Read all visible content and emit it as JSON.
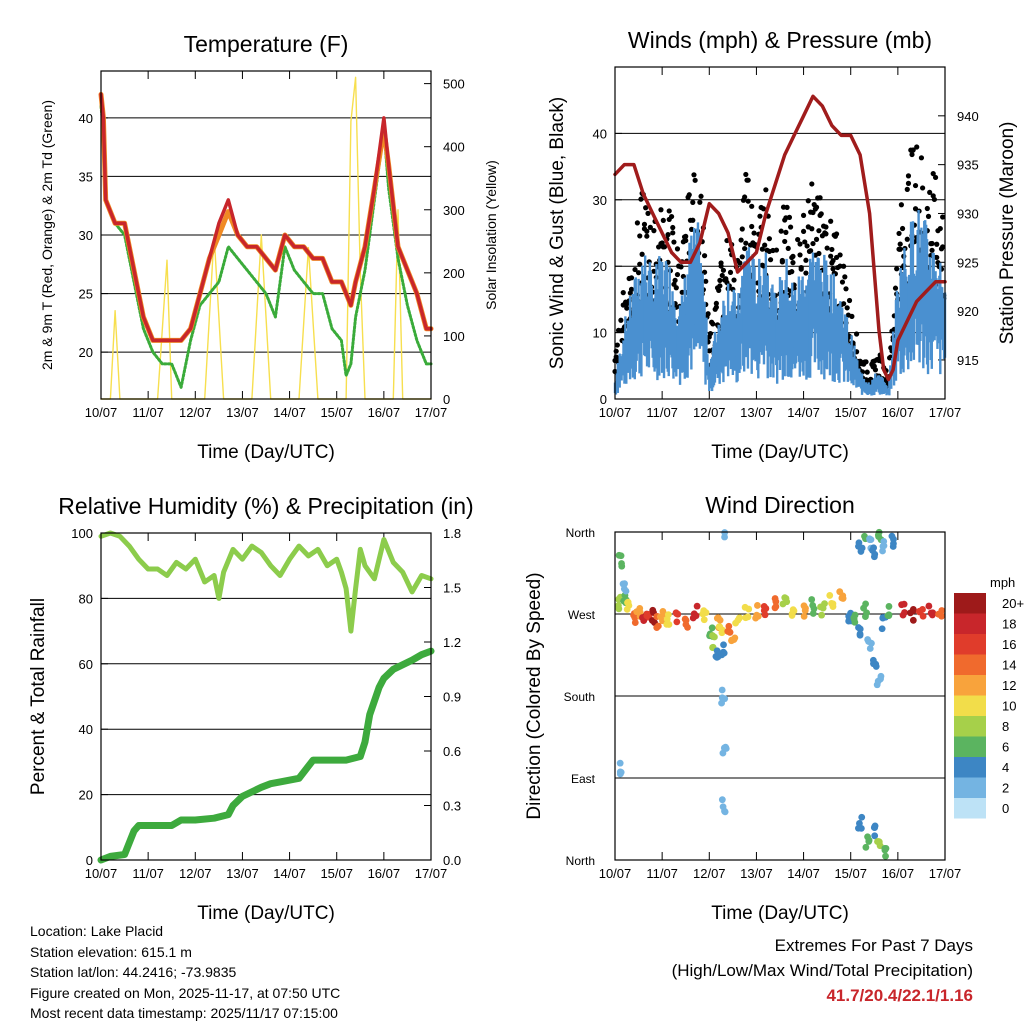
{
  "colors": {
    "temp2m": "#c8262b",
    "temp9m": "#f08a24",
    "dewpoint": "#3aab3a",
    "solar": "#f7df4e",
    "gust": "#000000",
    "wind": "#4a90d0",
    "pressure": "#a01c1c",
    "rh": "#8ccc4c",
    "precip": "#3daa3d",
    "extremes": "#c8262b"
  },
  "x_tick_labels": [
    "10/07",
    "11/07",
    "12/07",
    "13/07",
    "14/07",
    "15/07",
    "16/07",
    "17/07"
  ],
  "footer": {
    "location": "Location: Lake Placid",
    "elevation": "Station elevation: 615.1 m",
    "latlon": "Station lat/lon: 44.2416; -73.9835",
    "created": "Figure created on Mon, 2025-11-17, at 07:50 UTC",
    "recent": "Most recent data timestamp: 2025/11/17 07:15:00"
  },
  "extremes": {
    "title": "Extremes For Past 7 Days",
    "subtitle": "(High/Low/Max Wind/Total Precipitation)",
    "values": "41.7/20.4/22.1/1.16"
  },
  "chart_data": [
    {
      "id": "temperature",
      "type": "line",
      "title": "Temperature (F)",
      "xlabel": "Time (Day/UTC)",
      "ylabel": "2m & 9m T (Red, Orange) & 2m Td (Green)",
      "y2label": "Solar Insolation (Yellow)",
      "xlim": [
        0,
        7
      ],
      "ylim": [
        16,
        44
      ],
      "y_ticks": [
        20,
        25,
        30,
        35,
        40
      ],
      "y2lim": [
        0,
        520
      ],
      "y2_ticks": [
        0,
        100,
        200,
        300,
        400,
        500
      ],
      "series": [
        {
          "name": "2m T",
          "x": [
            0,
            0.05,
            0.1,
            0.3,
            0.5,
            0.7,
            0.9,
            1.1,
            1.3,
            1.5,
            1.7,
            1.9,
            2.1,
            2.3,
            2.5,
            2.7,
            2.9,
            3.1,
            3.3,
            3.5,
            3.7,
            3.9,
            4.1,
            4.3,
            4.5,
            4.7,
            4.9,
            5.1,
            5.3,
            5.4,
            5.6,
            5.8,
            6.0,
            6.1,
            6.3,
            6.5,
            6.7,
            6.9,
            7.0
          ],
          "values": [
            42,
            40,
            33,
            31,
            31,
            27,
            23,
            21,
            21,
            21,
            21,
            22,
            25,
            28,
            31,
            33,
            30,
            29,
            29,
            28,
            27,
            30,
            29,
            29,
            28,
            28,
            26,
            26,
            24,
            26,
            29,
            34,
            40,
            36,
            29,
            27,
            25,
            22,
            22
          ]
        },
        {
          "name": "9m T",
          "x": [
            0,
            0.05,
            0.1,
            0.3,
            0.5,
            0.7,
            0.9,
            1.1,
            1.3,
            1.5,
            1.7,
            1.9,
            2.1,
            2.3,
            2.5,
            2.7,
            2.9,
            3.1,
            3.3,
            3.5,
            3.7,
            3.9,
            4.1,
            4.3,
            4.5,
            4.7,
            4.9,
            5.1,
            5.3,
            5.4,
            5.6,
            5.8,
            6.0,
            6.1,
            6.3,
            6.5,
            6.7,
            6.9,
            7.0
          ],
          "values": [
            42,
            40,
            33,
            31,
            31,
            27,
            23,
            21,
            21,
            21,
            21,
            22,
            25,
            28,
            30,
            32,
            30,
            29,
            29,
            28,
            27,
            30,
            29,
            29,
            28,
            28,
            26,
            26,
            24,
            26,
            29,
            34,
            39,
            36,
            29,
            27,
            25,
            22,
            22
          ]
        },
        {
          "name": "2m Td",
          "x": [
            0,
            0.05,
            0.1,
            0.3,
            0.5,
            0.7,
            0.9,
            1.1,
            1.3,
            1.5,
            1.6,
            1.7,
            1.9,
            2.1,
            2.3,
            2.5,
            2.7,
            2.9,
            3.1,
            3.3,
            3.5,
            3.7,
            3.9,
            4.1,
            4.3,
            4.5,
            4.7,
            4.9,
            5.1,
            5.2,
            5.3,
            5.4,
            5.6,
            5.8,
            6.0,
            6.1,
            6.3,
            6.5,
            6.7,
            6.9,
            7.0
          ],
          "values": [
            41,
            39,
            33,
            31,
            30,
            26,
            22,
            20,
            19,
            19,
            18,
            17,
            21,
            24,
            25,
            26,
            29,
            28,
            27,
            26,
            25,
            23,
            29,
            27,
            26,
            25,
            25,
            22,
            21,
            18,
            19,
            23,
            27,
            33,
            39,
            34,
            28,
            24,
            21,
            19,
            19
          ]
        },
        {
          "name": "Solar",
          "axis": "y2",
          "x": [
            0,
            0.2,
            0.3,
            0.4,
            0.6,
            0.8,
            1.0,
            1.2,
            1.4,
            1.5,
            1.7,
            2.0,
            2.2,
            2.4,
            2.6,
            3.0,
            3.2,
            3.4,
            3.6,
            4.0,
            4.2,
            4.4,
            4.6,
            5.0,
            5.2,
            5.3,
            5.4,
            5.5,
            5.6,
            6.0,
            6.2,
            6.3,
            6.4,
            6.6,
            7.0
          ],
          "values": [
            0,
            0,
            140,
            0,
            0,
            0,
            0,
            0,
            220,
            0,
            0,
            0,
            0,
            260,
            0,
            0,
            0,
            260,
            0,
            0,
            0,
            240,
            0,
            0,
            0,
            440,
            510,
            200,
            0,
            0,
            0,
            300,
            0,
            0,
            0
          ]
        }
      ]
    },
    {
      "id": "winds",
      "type": "line",
      "title": "Winds (mph) & Pressure (mb)",
      "xlabel": "Time (Day/UTC)",
      "ylabel": "Sonic Wind & Gust (Blue, Black)",
      "y2label": "Station Pressure (Maroon)",
      "xlim": [
        0,
        7
      ],
      "ylim": [
        0,
        50
      ],
      "y_ticks": [
        0,
        10,
        20,
        30,
        40
      ],
      "y2lim": [
        911,
        945
      ],
      "y2_ticks": [
        915,
        920,
        925,
        930,
        935,
        940
      ],
      "series": [
        {
          "name": "Gust",
          "x": [
            0,
            0.2,
            0.4,
            0.6,
            0.8,
            1.0,
            1.2,
            1.4,
            1.6,
            1.8,
            2.0,
            2.2,
            2.4,
            2.6,
            2.8,
            3.0,
            3.2,
            3.4,
            3.6,
            3.8,
            4.0,
            4.2,
            4.4,
            4.6,
            4.8,
            5.0,
            5.2,
            5.4,
            5.6,
            5.8,
            6.0,
            6.2,
            6.4,
            6.6,
            6.8,
            7.0
          ],
          "values": [
            5,
            15,
            20,
            27,
            22,
            25,
            24,
            18,
            28,
            30,
            8,
            16,
            22,
            18,
            30,
            22,
            28,
            18,
            26,
            20,
            24,
            28,
            26,
            22,
            20,
            12,
            6,
            4,
            6,
            3,
            22,
            30,
            34,
            30,
            28,
            25
          ]
        },
        {
          "name": "Wind",
          "x": [
            0,
            0.2,
            0.4,
            0.6,
            0.8,
            1.0,
            1.2,
            1.4,
            1.6,
            1.8,
            2.0,
            2.2,
            2.4,
            2.6,
            2.8,
            3.0,
            3.2,
            3.4,
            3.6,
            3.8,
            4.0,
            4.2,
            4.4,
            4.6,
            4.8,
            5.0,
            5.2,
            5.4,
            5.6,
            5.8,
            6.0,
            6.2,
            6.4,
            6.6,
            6.8,
            7.0
          ],
          "values": [
            2,
            8,
            12,
            16,
            13,
            15,
            14,
            10,
            17,
            18,
            4,
            9,
            13,
            10,
            18,
            13,
            17,
            10,
            15,
            12,
            14,
            16,
            15,
            13,
            11,
            7,
            3,
            2,
            3,
            1,
            13,
            17,
            20,
            18,
            16,
            14
          ]
        },
        {
          "name": "Pressure",
          "axis": "y2",
          "x": [
            0,
            0.2,
            0.4,
            0.6,
            0.8,
            1.0,
            1.2,
            1.4,
            1.6,
            1.8,
            1.9,
            2.0,
            2.2,
            2.4,
            2.6,
            2.8,
            3.0,
            3.2,
            3.4,
            3.6,
            3.8,
            4.0,
            4.2,
            4.4,
            4.6,
            4.8,
            5.0,
            5.2,
            5.4,
            5.5,
            5.6,
            5.7,
            5.8,
            5.9,
            6.0,
            6.2,
            6.4,
            6.6,
            6.8,
            7.0
          ],
          "values": [
            934,
            935,
            935,
            932,
            930,
            928,
            926,
            925,
            925,
            927,
            929,
            931,
            930,
            928,
            924,
            925,
            926,
            930,
            933,
            936,
            938,
            940,
            942,
            941,
            939,
            938,
            938,
            936,
            930,
            924,
            918,
            914,
            913,
            914,
            917,
            919,
            921,
            922,
            923,
            923
          ]
        }
      ]
    },
    {
      "id": "humidity",
      "type": "line",
      "title": "Relative Humidity (%) & Precipitation (in)",
      "xlabel": "Time (Day/UTC)",
      "ylabel": "Percent & Total Rainfall",
      "xlim": [
        0,
        7
      ],
      "ylim": [
        0,
        100
      ],
      "y_ticks": [
        0,
        20,
        40,
        60,
        80,
        100
      ],
      "y2lim": [
        0,
        1.8
      ],
      "y2_ticks": [
        "0.0",
        "0.3",
        "0.6",
        "0.9",
        "1.2",
        "1.5",
        "1.8"
      ],
      "series": [
        {
          "name": "RH",
          "x": [
            0,
            0.2,
            0.4,
            0.6,
            0.8,
            1.0,
            1.2,
            1.4,
            1.6,
            1.8,
            2.0,
            2.2,
            2.4,
            2.5,
            2.6,
            2.8,
            3.0,
            3.2,
            3.4,
            3.6,
            3.8,
            4.0,
            4.2,
            4.4,
            4.6,
            4.8,
            5.0,
            5.1,
            5.2,
            5.3,
            5.4,
            5.5,
            5.6,
            5.8,
            6.0,
            6.2,
            6.4,
            6.6,
            6.8,
            7.0
          ],
          "values": [
            99,
            100,
            99,
            96,
            92,
            89,
            89,
            87,
            91,
            89,
            92,
            85,
            87,
            80,
            88,
            95,
            92,
            96,
            94,
            90,
            87,
            92,
            96,
            93,
            95,
            90,
            92,
            88,
            83,
            70,
            83,
            95,
            90,
            86,
            98,
            91,
            88,
            82,
            87,
            86
          ]
        },
        {
          "name": "Precip",
          "axis": "y2",
          "x": [
            0,
            0.2,
            0.5,
            0.7,
            0.8,
            1.5,
            1.7,
            2.0,
            2.4,
            2.7,
            2.8,
            3.0,
            3.4,
            3.6,
            3.8,
            4.2,
            4.5,
            5.2,
            5.5,
            5.6,
            5.7,
            5.9,
            6.0,
            6.2,
            6.6,
            6.8,
            7.0
          ],
          "values": [
            0,
            0.02,
            0.03,
            0.16,
            0.19,
            0.19,
            0.22,
            0.22,
            0.23,
            0.25,
            0.3,
            0.35,
            0.4,
            0.42,
            0.43,
            0.45,
            0.55,
            0.55,
            0.57,
            0.65,
            0.8,
            0.95,
            1.0,
            1.05,
            1.1,
            1.13,
            1.15
          ]
        }
      ]
    },
    {
      "id": "direction",
      "type": "scatter",
      "title": "Wind Direction",
      "xlabel": "Time (Day/UTC)",
      "ylabel": "Direction (Colored By Speed)",
      "xlim": [
        0,
        7
      ],
      "ylim": [
        0,
        360
      ],
      "y_ticks": [
        {
          "value": 0,
          "label": "North"
        },
        {
          "value": 90,
          "label": "East"
        },
        {
          "value": 180,
          "label": "South"
        },
        {
          "value": 270,
          "label": "West"
        },
        {
          "value": 360,
          "label": "North"
        }
      ],
      "legend": {
        "title": "mph",
        "labels": [
          "20+",
          "18",
          "16",
          "14",
          "12",
          "10",
          "8",
          "6",
          "4",
          "2",
          "0"
        ],
        "colors": [
          "#9e1a1a",
          "#c8262b",
          "#e03c2b",
          "#f06a2d",
          "#f8a33c",
          "#f2dd4a",
          "#a6d04a",
          "#5bb460",
          "#3d86c4",
          "#74b4e2",
          "#bde2f6"
        ]
      },
      "points": {
        "x": [
          0.1,
          0.2,
          0.3,
          0.4,
          0.5,
          0.6,
          0.7,
          0.8,
          0.9,
          1.0,
          1.1,
          1.3,
          1.5,
          1.7,
          1.9,
          2.05,
          2.1,
          2.15,
          2.2,
          2.25,
          2.3,
          2.4,
          2.5,
          2.6,
          2.8,
          3.0,
          3.2,
          3.4,
          3.6,
          3.8,
          4.0,
          4.2,
          4.4,
          4.6,
          4.8,
          5.0,
          5.1,
          5.2,
          5.3,
          5.4,
          5.5,
          5.6,
          5.7,
          5.8,
          5.9,
          6.1,
          6.3,
          6.5,
          6.7,
          6.9,
          0.1,
          0.2,
          2.3,
          2.3,
          5.2,
          5.3,
          5.4,
          5.5,
          5.6,
          5.7,
          5.2,
          5.35,
          5.5,
          5.6,
          5.75,
          2.3,
          2.32,
          0.1
        ],
        "y": [
          282,
          285,
          278,
          268,
          274,
          260,
          270,
          268,
          262,
          270,
          265,
          268,
          262,
          272,
          266,
          248,
          240,
          225,
          260,
          252,
          232,
          255,
          248,
          262,
          270,
          272,
          276,
          280,
          285,
          275,
          272,
          278,
          274,
          286,
          290,
          270,
          262,
          250,
          275,
          240,
          215,
          200,
          260,
          275,
          350,
          276,
          270,
          268,
          272,
          266,
          330,
          300,
          360,
          180,
          345,
          355,
          350,
          340,
          358,
          345,
          40,
          20,
          30,
          15,
          10,
          60,
          120,
          100
        ],
        "speed": [
          8,
          6,
          10,
          14,
          12,
          18,
          16,
          20,
          14,
          12,
          10,
          16,
          14,
          18,
          10,
          6,
          8,
          4,
          12,
          10,
          4,
          14,
          12,
          10,
          10,
          12,
          16,
          14,
          8,
          10,
          12,
          6,
          8,
          10,
          12,
          4,
          6,
          4,
          6,
          2,
          4,
          2,
          4,
          6,
          4,
          18,
          20,
          16,
          18,
          14,
          6,
          2,
          2,
          2,
          4,
          6,
          2,
          4,
          6,
          2,
          4,
          6,
          4,
          8,
          6,
          2,
          2,
          2
        ]
      }
    }
  ]
}
